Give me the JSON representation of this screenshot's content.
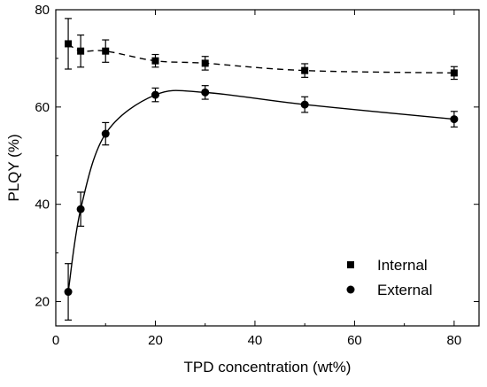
{
  "chart_data": {
    "type": "scatter",
    "xlabel": "TPD concentration (wt%)",
    "ylabel": "PLQY (%)",
    "xlim": [
      0,
      85
    ],
    "ylim": [
      15,
      80
    ],
    "xticks": [
      0,
      20,
      40,
      60,
      80
    ],
    "yticks": [
      20,
      40,
      60,
      80
    ],
    "legend_position": "bottom-right",
    "grid": false,
    "series": [
      {
        "name": "Internal",
        "marker": "square",
        "line": "dashed fit",
        "color": "#000000",
        "x": [
          2.5,
          5,
          10,
          20,
          30,
          50,
          80
        ],
        "y": [
          73,
          71.5,
          71.5,
          69.5,
          69,
          67.5,
          67
        ],
        "err": [
          5.2,
          3.3,
          2.3,
          1.3,
          1.4,
          1.4,
          1.3
        ]
      },
      {
        "name": "External",
        "marker": "circle",
        "line": "solid fit",
        "color": "#000000",
        "x": [
          2.5,
          5,
          10,
          20,
          30,
          50,
          80
        ],
        "y": [
          22,
          39,
          54.5,
          62.5,
          63,
          60.5,
          57.5
        ],
        "err": [
          5.8,
          3.5,
          2.3,
          1.4,
          1.4,
          1.6,
          1.6
        ]
      }
    ]
  }
}
